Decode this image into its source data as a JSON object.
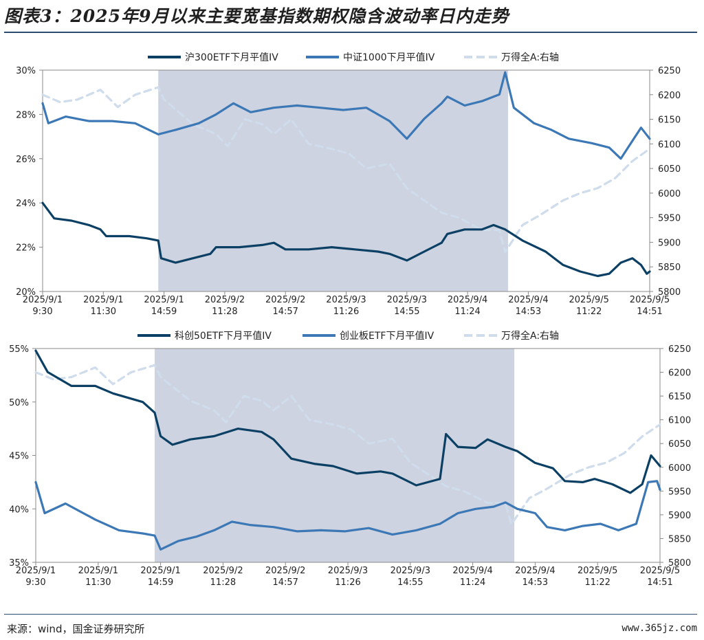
{
  "title": "图表3：2025年9月以来主要宽基指数期权隐含波动率日内走势",
  "source": "来源：wind，国金证券研究所",
  "watermark": "www.365jz.com",
  "colors": {
    "dark": "#0b4064",
    "mid": "#3c78b5",
    "light": "#cfdcec",
    "shade": "#cdd3e0",
    "axis": "#888888"
  },
  "x_ticks": [
    [
      "2025/9/1",
      "9:30"
    ],
    [
      "2025/9/1",
      "11:30"
    ],
    [
      "2025/9/1",
      "14:59"
    ],
    [
      "2025/9/2",
      "11:28"
    ],
    [
      "2025/9/2",
      "14:57"
    ],
    [
      "2025/9/3",
      "11:26"
    ],
    [
      "2025/9/3",
      "14:55"
    ],
    [
      "2025/9/4",
      "11:24"
    ],
    [
      "2025/9/4",
      "14:53"
    ],
    [
      "2025/9/5",
      "11:22"
    ],
    [
      "2025/9/5",
      "14:51"
    ]
  ],
  "chart_data": [
    {
      "type": "line",
      "legend": [
        "沪300ETF下月平值IV",
        "中证1000下月平值IV",
        "万得全A:右轴"
      ],
      "left_axis": {
        "ticks": [
          "20%",
          "22%",
          "24%",
          "26%",
          "28%",
          "30%"
        ],
        "ylim": [
          20,
          30
        ]
      },
      "right_axis": {
        "ticks": [
          "5800",
          "5850",
          "5900",
          "5950",
          "6000",
          "6050",
          "6100",
          "6150",
          "6200",
          "6250"
        ],
        "ylim": [
          5800,
          6250
        ]
      },
      "shaded_range": [
        2,
        8.05
      ],
      "series": [
        {
          "name": "沪300ETF下月平值IV",
          "axis": "left",
          "style": "dark",
          "points": [
            [
              0,
              24.0
            ],
            [
              0.2,
              23.3
            ],
            [
              0.5,
              23.2
            ],
            [
              0.8,
              23.0
            ],
            [
              1,
              22.8
            ],
            [
              1.1,
              22.5
            ],
            [
              1.5,
              22.5
            ],
            [
              1.8,
              22.4
            ],
            [
              2,
              22.3
            ],
            [
              2.05,
              21.5
            ],
            [
              2.3,
              21.3
            ],
            [
              2.6,
              21.5
            ],
            [
              2.9,
              21.7
            ],
            [
              3,
              22.0
            ],
            [
              3.4,
              22.0
            ],
            [
              3.8,
              22.1
            ],
            [
              4,
              22.2
            ],
            [
              4.2,
              21.9
            ],
            [
              4.6,
              21.9
            ],
            [
              5,
              22.0
            ],
            [
              5.4,
              21.9
            ],
            [
              5.8,
              21.8
            ],
            [
              6,
              21.7
            ],
            [
              6.3,
              21.4
            ],
            [
              6.6,
              21.8
            ],
            [
              6.9,
              22.2
            ],
            [
              7,
              22.6
            ],
            [
              7.3,
              22.8
            ],
            [
              7.6,
              22.8
            ],
            [
              7.8,
              23.0
            ],
            [
              8,
              22.8
            ],
            [
              8.3,
              22.3
            ],
            [
              8.7,
              21.8
            ],
            [
              9,
              21.2
            ],
            [
              9.3,
              20.9
            ],
            [
              9.6,
              20.7
            ],
            [
              9.8,
              20.8
            ],
            [
              10,
              21.3
            ],
            [
              10.2,
              21.5
            ],
            [
              10.35,
              21.2
            ],
            [
              10.45,
              20.8
            ],
            [
              10.5,
              20.9
            ]
          ]
        },
        {
          "name": "中证1000下月平值IV",
          "axis": "left",
          "style": "mid",
          "points": [
            [
              0,
              28.5
            ],
            [
              0.1,
              27.6
            ],
            [
              0.4,
              27.9
            ],
            [
              0.8,
              27.7
            ],
            [
              1.2,
              27.7
            ],
            [
              1.6,
              27.6
            ],
            [
              2,
              27.1
            ],
            [
              2.3,
              27.3
            ],
            [
              2.7,
              27.6
            ],
            [
              3,
              28.0
            ],
            [
              3.3,
              28.5
            ],
            [
              3.6,
              28.1
            ],
            [
              4,
              28.3
            ],
            [
              4.4,
              28.4
            ],
            [
              4.8,
              28.3
            ],
            [
              5.2,
              28.2
            ],
            [
              5.6,
              28.3
            ],
            [
              6,
              27.7
            ],
            [
              6.3,
              26.9
            ],
            [
              6.6,
              27.8
            ],
            [
              6.9,
              28.5
            ],
            [
              7,
              28.8
            ],
            [
              7.3,
              28.4
            ],
            [
              7.6,
              28.6
            ],
            [
              7.9,
              28.9
            ],
            [
              8,
              29.9
            ],
            [
              8.15,
              28.3
            ],
            [
              8.5,
              27.6
            ],
            [
              8.8,
              27.3
            ],
            [
              9.1,
              26.9
            ],
            [
              9.5,
              26.7
            ],
            [
              9.8,
              26.5
            ],
            [
              10,
              26.0
            ],
            [
              10.2,
              26.8
            ],
            [
              10.35,
              27.4
            ],
            [
              10.5,
              26.9
            ]
          ]
        },
        {
          "name": "万得全A:右轴",
          "axis": "right",
          "style": "light-dashed",
          "points": [
            [
              0,
              6200
            ],
            [
              0.3,
              6185
            ],
            [
              0.6,
              6190
            ],
            [
              1,
              6210
            ],
            [
              1.3,
              6175
            ],
            [
              1.6,
              6200
            ],
            [
              2,
              6215
            ],
            [
              2.1,
              6190
            ],
            [
              2.3,
              6170
            ],
            [
              2.6,
              6140
            ],
            [
              3,
              6120
            ],
            [
              3.2,
              6095
            ],
            [
              3.5,
              6150
            ],
            [
              3.8,
              6140
            ],
            [
              4,
              6120
            ],
            [
              4.3,
              6150
            ],
            [
              4.6,
              6100
            ],
            [
              5,
              6090
            ],
            [
              5.3,
              6080
            ],
            [
              5.6,
              6050
            ],
            [
              6,
              6060
            ],
            [
              6.3,
              6010
            ],
            [
              6.6,
              5985
            ],
            [
              6.9,
              5960
            ],
            [
              7.2,
              5950
            ],
            [
              7.6,
              5925
            ],
            [
              7.9,
              5925
            ],
            [
              8,
              5880
            ],
            [
              8.3,
              5935
            ],
            [
              8.6,
              5955
            ],
            [
              9,
              5985
            ],
            [
              9.3,
              6000
            ],
            [
              9.6,
              6010
            ],
            [
              9.9,
              6030
            ],
            [
              10.2,
              6065
            ],
            [
              10.5,
              6090
            ]
          ]
        }
      ]
    },
    {
      "type": "line",
      "legend": [
        "科创50ETF下月平值IV",
        "创业板ETF下月平值IV",
        "万得全A:右轴"
      ],
      "left_axis": {
        "ticks": [
          "35%",
          "40%",
          "45%",
          "50%",
          "55%"
        ],
        "ylim": [
          35,
          55
        ]
      },
      "right_axis": {
        "ticks": [
          "5800",
          "5850",
          "5900",
          "5950",
          "6000",
          "6050",
          "6100",
          "6150",
          "6200",
          "6250"
        ],
        "ylim": [
          5800,
          6250
        ]
      },
      "shaded_range": [
        2,
        8.05
      ],
      "series": [
        {
          "name": "科创50ETF下月平值IV",
          "axis": "left",
          "style": "dark",
          "points": [
            [
              0,
              54.8
            ],
            [
              0.2,
              52.8
            ],
            [
              0.6,
              51.5
            ],
            [
              1,
              51.5
            ],
            [
              1.3,
              50.8
            ],
            [
              1.8,
              50.0
            ],
            [
              2,
              49.0
            ],
            [
              2.1,
              46.8
            ],
            [
              2.3,
              46.0
            ],
            [
              2.6,
              46.5
            ],
            [
              3,
              46.8
            ],
            [
              3.4,
              47.5
            ],
            [
              3.8,
              47.2
            ],
            [
              4,
              46.5
            ],
            [
              4.3,
              44.7
            ],
            [
              4.7,
              44.2
            ],
            [
              5,
              44.0
            ],
            [
              5.4,
              43.3
            ],
            [
              5.8,
              43.5
            ],
            [
              6,
              43.3
            ],
            [
              6.4,
              42.2
            ],
            [
              6.8,
              42.8
            ],
            [
              6.9,
              47.0
            ],
            [
              7.1,
              45.8
            ],
            [
              7.4,
              45.7
            ],
            [
              7.6,
              46.5
            ],
            [
              7.9,
              45.8
            ],
            [
              8.1,
              45.4
            ],
            [
              8.4,
              44.3
            ],
            [
              8.7,
              43.8
            ],
            [
              8.9,
              42.6
            ],
            [
              9.2,
              42.5
            ],
            [
              9.4,
              42.8
            ],
            [
              9.7,
              42.3
            ],
            [
              10,
              41.5
            ],
            [
              10.2,
              42.3
            ],
            [
              10.35,
              45.0
            ],
            [
              10.5,
              44.0
            ]
          ]
        },
        {
          "name": "创业板ETF下月平值IV",
          "axis": "left",
          "style": "mid",
          "points": [
            [
              0,
              42.5
            ],
            [
              0.15,
              39.6
            ],
            [
              0.5,
              40.5
            ],
            [
              1,
              39.0
            ],
            [
              1.4,
              38.0
            ],
            [
              1.8,
              37.7
            ],
            [
              2,
              37.5
            ],
            [
              2.1,
              36.2
            ],
            [
              2.4,
              37.0
            ],
            [
              2.7,
              37.4
            ],
            [
              3,
              38.0
            ],
            [
              3.3,
              38.8
            ],
            [
              3.6,
              38.5
            ],
            [
              4,
              38.3
            ],
            [
              4.4,
              37.9
            ],
            [
              4.8,
              38.0
            ],
            [
              5.2,
              37.9
            ],
            [
              5.6,
              38.2
            ],
            [
              6,
              37.6
            ],
            [
              6.4,
              38.0
            ],
            [
              6.8,
              38.6
            ],
            [
              7.1,
              39.6
            ],
            [
              7.4,
              40.0
            ],
            [
              7.7,
              40.2
            ],
            [
              7.9,
              40.6
            ],
            [
              8.1,
              40.0
            ],
            [
              8.4,
              39.6
            ],
            [
              8.6,
              38.3
            ],
            [
              8.9,
              38.0
            ],
            [
              9.2,
              38.4
            ],
            [
              9.5,
              38.6
            ],
            [
              9.8,
              38.0
            ],
            [
              10.1,
              38.6
            ],
            [
              10.3,
              42.5
            ],
            [
              10.45,
              42.6
            ],
            [
              10.5,
              41.8
            ]
          ]
        },
        {
          "name": "万得全A:右轴",
          "axis": "right",
          "style": "light-dashed",
          "points": [
            [
              0,
              6200
            ],
            [
              0.3,
              6185
            ],
            [
              0.6,
              6190
            ],
            [
              1,
              6210
            ],
            [
              1.3,
              6175
            ],
            [
              1.6,
              6200
            ],
            [
              2,
              6215
            ],
            [
              2.1,
              6190
            ],
            [
              2.3,
              6170
            ],
            [
              2.6,
              6140
            ],
            [
              3,
              6120
            ],
            [
              3.2,
              6095
            ],
            [
              3.5,
              6150
            ],
            [
              3.8,
              6140
            ],
            [
              4,
              6120
            ],
            [
              4.3,
              6150
            ],
            [
              4.6,
              6100
            ],
            [
              5,
              6090
            ],
            [
              5.3,
              6080
            ],
            [
              5.6,
              6050
            ],
            [
              6,
              6060
            ],
            [
              6.3,
              6010
            ],
            [
              6.6,
              5985
            ],
            [
              6.9,
              5960
            ],
            [
              7.2,
              5950
            ],
            [
              7.6,
              5925
            ],
            [
              7.9,
              5925
            ],
            [
              8,
              5880
            ],
            [
              8.3,
              5935
            ],
            [
              8.6,
              5955
            ],
            [
              9,
              5985
            ],
            [
              9.3,
              6000
            ],
            [
              9.6,
              6010
            ],
            [
              9.9,
              6030
            ],
            [
              10.2,
              6065
            ],
            [
              10.5,
              6090
            ]
          ]
        }
      ]
    }
  ]
}
